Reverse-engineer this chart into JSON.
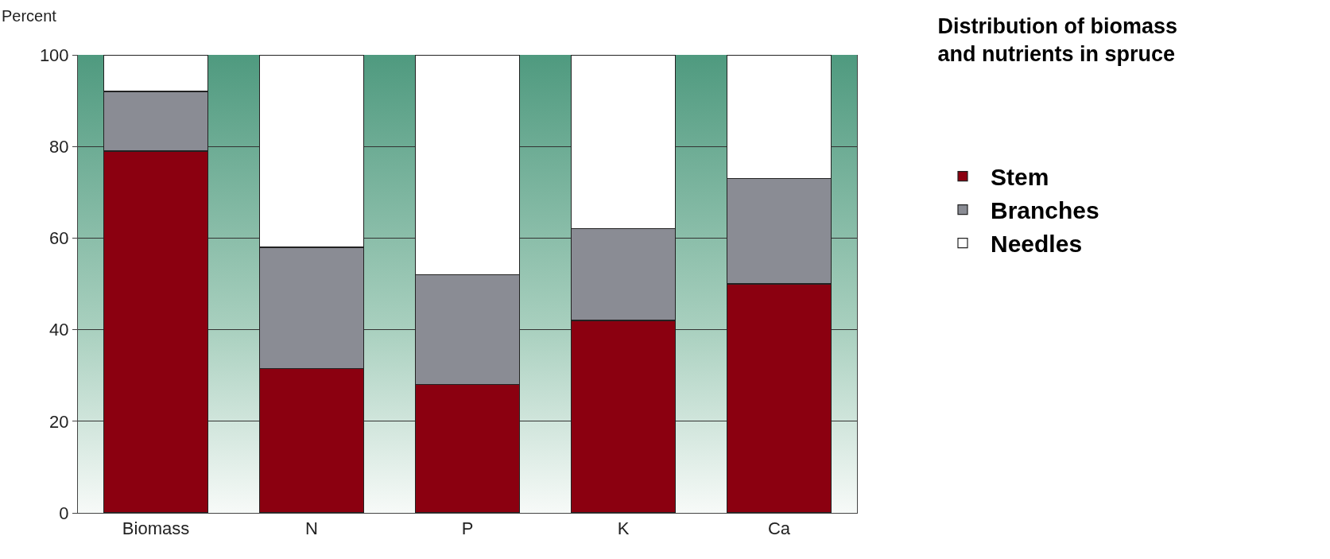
{
  "chart_data": {
    "type": "bar",
    "title": "Distribution of biomass\nand nutrients in spruce",
    "ylabel": "Percent",
    "categories": [
      "Biomass",
      "N",
      "P",
      "K",
      "Ca"
    ],
    "stacked": true,
    "series": [
      {
        "name": "Stem",
        "color": "#8b0010",
        "values": [
          79,
          31.5,
          28,
          42,
          50
        ]
      },
      {
        "name": "Branches",
        "color": "#8a8c94",
        "values": [
          13,
          26.5,
          24,
          20,
          23
        ]
      },
      {
        "name": "Needles",
        "color": "#ffffff",
        "values": [
          8,
          42,
          48,
          38,
          27
        ]
      }
    ],
    "ylim": [
      0,
      100
    ],
    "yticks": [
      0,
      20,
      40,
      60,
      80,
      100
    ],
    "grid": "y",
    "legend": "right"
  }
}
